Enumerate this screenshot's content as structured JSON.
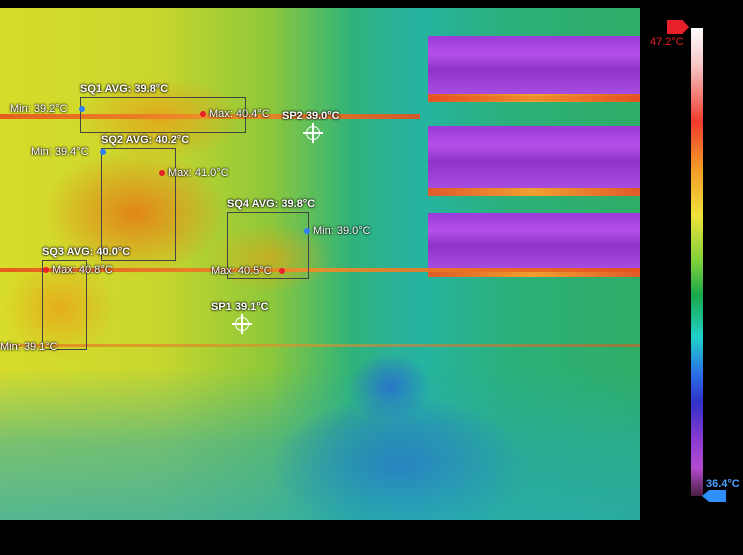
{
  "spots": {
    "sp1": {
      "label": "SP1 39.1°C"
    },
    "sp2": {
      "label": "SP2 39.0°C"
    }
  },
  "regions": {
    "sq1": {
      "label": "SQ1 AVG: 39.8°C",
      "min": "Min: 39.2°C",
      "max": "Max: 40.4°C"
    },
    "sq2": {
      "label": "SQ2 AVG: 40.2°C",
      "min": "Min: 39.4°C",
      "max": "Max: 41.0°C"
    },
    "sq3": {
      "label": "SQ3 AVG: 40.0°C",
      "min": "Min: 39.1°C",
      "max": "Max: 40.8°C"
    },
    "sq4": {
      "label": "SQ4 AVG: 39.8°C",
      "min": "Min: 39.0°C",
      "max": "Max: 40.5°C"
    }
  },
  "scale": {
    "max_label": "47.2°C",
    "min_label": "36.4°C",
    "palette": "iron-rainbow",
    "max_color": "#e8202a",
    "min_color": "#2f8fff"
  }
}
